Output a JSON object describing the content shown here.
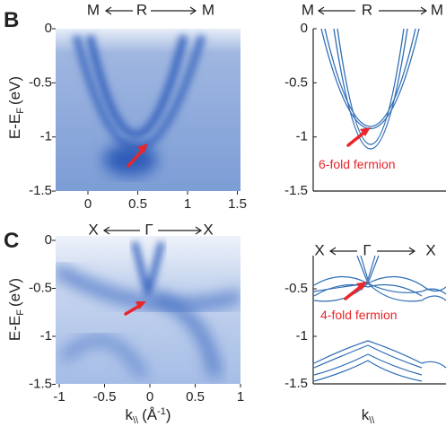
{
  "panels": [
    {
      "label": "B",
      "arpes": {
        "directions": [
          "M",
          "R",
          "M"
        ],
        "y_label": {
          "main": "E-E",
          "sub": "F",
          "unit": "(eV)"
        },
        "yticks": [
          0,
          -0.5,
          -1,
          -1.5
        ],
        "xticks": [
          0,
          0.5,
          1,
          1.5
        ]
      },
      "calc": {
        "directions": [
          "M",
          "R",
          "M"
        ],
        "yticks": [
          0,
          -0.5,
          -1,
          -1.5
        ],
        "annotation": "6-fold fermion"
      }
    },
    {
      "label": "C",
      "arpes": {
        "directions": [
          "X",
          "Γ",
          "X"
        ],
        "y_label": {
          "main": "E-E",
          "sub": "F",
          "unit": "(eV)"
        },
        "yticks": [
          0,
          -0.5,
          -1,
          -1.5
        ],
        "xticks": [
          -1,
          -0.5,
          0,
          0.5,
          1
        ],
        "x_label": {
          "main": "k",
          "sub": "\\\\",
          "unit": "(Å",
          "sup": "-1",
          "close": ")"
        }
      },
      "calc": {
        "directions": [
          "X",
          "Γ",
          "X"
        ],
        "yticks": [
          -0.5,
          -1,
          -1.5
        ],
        "annotation": "4-fold fermion",
        "x_label": {
          "main": "k",
          "sub": "\\\\"
        }
      }
    }
  ]
}
